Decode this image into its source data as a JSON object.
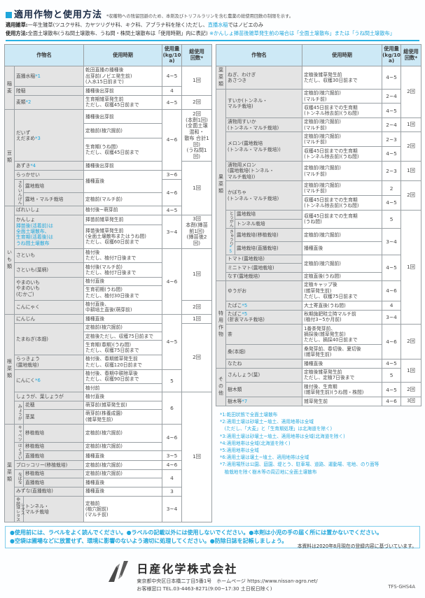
{
  "page": {
    "title": "適用作物と使用方法",
    "title_note": "*収穫物への残留回避のため、本剤及びトリフルラリンを含む農薬の総使用回数の制限を示す。",
    "weeds_label": "適用雑草:",
    "weeds_text": "一年生雑草(ツユクサ科、カヤツリグサ科、キク科、アブラナ科を除く)ただし、",
    "weeds_highlight": "直播水稲",
    "weeds_tail": "ではノビエのみ",
    "method_label": "使用方法:",
    "method_text": "全面土壌散布(うね間土壌散布、うね間・株間土壌散布は「使用時期」内に表記)",
    "method_note": "※かんしょ挿苗後雑草発生前の場合は「全面土壌散布」または「うね間土壌散布」"
  },
  "table": {
    "headers": {
      "crop": "作物名",
      "period": "使用時期",
      "amount": "使用量\n(kg/10a)",
      "count": "総使用\n回数*"
    },
    "left_rows": [
      [
        {
          "t": "稲麦",
          "c": "g",
          "rs": 3
        },
        {
          "t": "直播水稲〚*1〛",
          "c": "nm",
          "cs": 2
        },
        {
          "t": "乾田直播の播種後\n出芽前(ノビエ発生前)\n(入水15日前まで)",
          "c": "pd"
        },
        {
          "t": "4~5",
          "c": "am"
        },
        {
          "t": "1回",
          "c": "ct",
          "rs": 2
        }
      ],
      [
        {
          "t": "陸稲",
          "c": "nm",
          "cs": 2
        },
        {
          "t": "播種後出芽前",
          "c": "pd"
        },
        {
          "t": "4",
          "c": "am"
        }
      ],
      [
        {
          "t": "麦類〚*2〛",
          "c": "nm",
          "cs": 2
        },
        {
          "t": "生育期雑草発生前\nただし、収穫45日前まで",
          "c": "pd"
        },
        {
          "t": "4~5",
          "c": "am"
        },
        {
          "t": "2回",
          "c": "ct"
        }
      ],
      [
        {
          "t": "豆類",
          "c": "g",
          "rs": 7
        },
        {
          "t": "だいず\nえだまめ〚*3〛",
          "c": "nm",
          "cs": 2,
          "rs": 3
        },
        {
          "t": "播種後出芽前",
          "c": "pd"
        },
        {
          "t": "4~6",
          "c": "am",
          "rs": 4
        },
        {
          "t": "2回\n〚〛(本剤1回)\n(全面土壌混和・\n散布 合計1回)\n(うね間1回)",
          "c": "ct",
          "rs": 3
        }
      ],
      [
        {
          "t": "定植前(植穴掘前)",
          "c": "pd"
        }
      ],
      [
        {
          "t": "生育期(うね間)\nただし、収穫45日前まで",
          "c": "pd"
        }
      ],
      [
        {
          "t": "あずき〚*4〛",
          "c": "nm",
          "cs": 2
        },
        {
          "t": "播種後出芽前",
          "c": "pd"
        },
        {
          "t": "1回",
          "c": "ct",
          "rs": 5
        }
      ],
      [
        {
          "t": "らっかせい",
          "c": "nm",
          "cs": 2
        },
        {
          "t": "播種直後",
          "c": "pd",
          "rs": 2
        },
        {
          "t": "3~6",
          "c": "am"
        }
      ],
      [
        {
          "t": "さやいんげん",
          "c": "sv",
          "rs": 2
        },
        {
          "t": "露地栽培",
          "c": "nm"
        },
        {
          "t": "4~6",
          "c": "am",
          "rs": 2
        }
      ],
      [
        {
          "t": "露地・マルチ栽培",
          "c": "nm"
        },
        {
          "t": "定植前(マルチ前)",
          "c": "pd"
        }
      ],
      [
        {
          "t": "いも類",
          "c": "g",
          "rs": 8
        },
        {
          "t": "ばれいしょ",
          "c": "nm",
          "cs": 2
        },
        {
          "t": "植付後~萌芽前",
          "c": "pd"
        },
        {
          "t": "4~5",
          "c": "am"
        }
      ],
      [
        {
          "t": "かんしょ\n〚挿苗後(活着前)は\n全面土壌散布、\n生育期(活着後)は\nうね間土壌散布〛",
          "c": "nm",
          "cs": 2,
          "rs": 2
        },
        {
          "t": "挿苗前雑草発生前",
          "c": "pd"
        },
        {
          "t": "3~4",
          "c": "am",
          "rs": 2
        },
        {
          "t": "3回\n〚〛本剤(挿苗前1回)\n(挿苗後2回)",
          "c": "ct",
          "rs": 2
        }
      ],
      [
        {
          "t": "挿苗後雑草発生前\n(全面土壌散布またはうね間)\nただし、収穫60日前まで",
          "c": "pd"
        }
      ],
      [
        {
          "t": "さといも",
          "c": "nm",
          "cs": 2
        },
        {
          "t": "植付後\nただし、植付7日後まで",
          "c": "pd"
        },
        {
          "t": "4~6",
          "c": "am",
          "rs": 5
        },
        {
          "t": "1回",
          "c": "ct",
          "rs": 4
        }
      ],
      [
        {
          "t": "さといも(葉柄)",
          "c": "nm",
          "cs": 2
        },
        {
          "t": "植付後(マルチ前)\nただし、植付7日後まで",
          "c": "pd"
        }
      ],
      [
        {
          "t": "やまのいも\nやまのいも\n(むかご)",
          "c": "nm",
          "cs": 2,
          "rs": 2
        },
        {
          "t": "植付直後",
          "c": "pd"
        }
      ],
      [
        {
          "t": "生育初期(うね間)\nただし、植付30日後まで",
          "c": "pd"
        }
      ],
      [
        {
          "t": "こんにゃく",
          "c": "nm",
          "cs": 2
        },
        {
          "t": "植付直後、\n中耕培土直後(萌芽前)",
          "c": "pd"
        },
        {
          "t": "2回",
          "c": "ct"
        }
      ],
      [
        {
          "t": "根菜類",
          "c": "g",
          "rs": 10
        },
        {
          "t": "にんじん",
          "c": "nm",
          "cs": 2
        },
        {
          "t": "播種直後",
          "c": "pd"
        },
        {
          "t": "4~5",
          "c": "am",
          "rs": 5
        },
        {
          "t": "1回",
          "c": "ct"
        }
      ],
      [
        {
          "t": "たまねぎ(本畑)",
          "c": "nm",
          "cs": 2,
          "rs": 3
        },
        {
          "t": "定植前(植穴掘前)",
          "c": "pd"
        },
        {
          "t": "2回",
          "c": "ct",
          "rs": 6
        }
      ],
      [
        {
          "t": "定植後ただし、収穫75日前まで",
          "c": "pd"
        }
      ],
      [
        {
          "t": "生育期(春期)(うね間)\nただし、収穫75日前まで",
          "c": "pd"
        }
      ],
      [
        {
          "t": "らっきょう\n(露地栽培)",
          "c": "nm",
          "cs": 2
        },
        {
          "t": "植付後、春期雑草発生前\nただし、収穫120日前まで",
          "c": "pd"
        }
      ],
      [
        {
          "t": "にんにく〚*6〛",
          "c": "nm",
          "cs": 2,
          "rs": 2
        },
        {
          "t": "植付後、春期中耕除草後\nただし、収穫90日前まで",
          "c": "pd"
        },
        {
          "t": "5",
          "c": "am",
          "rs": 2
        }
      ],
      [
        {
          "t": "植付前",
          "c": "pd"
        }
      ],
      [
        {
          "t": "しょうが、葉しょうが",
          "c": "nm",
          "cs": 2
        },
        {
          "t": "植付直後",
          "c": "pd"
        },
        {
          "t": "6",
          "c": "am",
          "rs": 3
        },
        {
          "t": "1回",
          "c": "ct",
          "rs": 11
        }
      ],
      [
        {
          "t": "みょうが",
          "c": "sv",
          "rs": 2
        },
        {
          "t": "花穂",
          "c": "nm"
        },
        {
          "t": "萌芽前(雑草発生前)",
          "c": "pd"
        }
      ],
      [
        {
          "t": "茎葉",
          "c": "nm"
        },
        {
          "t": "萌芽前(株養成園)\n(雑草発生前)",
          "c": "pd"
        }
      ],
      [
        {
          "t": "葉菜類",
          "c": "g",
          "rs": 8
        },
        {
          "t": "キャベツ",
          "c": "sv"
        },
        {
          "t": "移植栽培",
          "c": "nm"
        },
        {
          "t": "定植前(植穴掘前)",
          "c": "pd"
        },
        {
          "t": "4~6",
          "c": "am",
          "rs": 2
        }
      ],
      [
        {
          "t": "はくさい",
          "c": "sv",
          "rs": 2
        },
        {
          "t": "移植栽培",
          "c": "nm"
        },
        {
          "t": "定植前(植穴掘前)",
          "c": "pd"
        }
      ],
      [
        {
          "t": "直播栽培",
          "c": "nm"
        },
        {
          "t": "播種直後",
          "c": "pd"
        },
        {
          "t": "3~5",
          "c": "am"
        }
      ],
      [
        {
          "t": "ブロッコリー(移植栽培)",
          "c": "nm",
          "cs": 2
        },
        {
          "t": "定植前(植穴掘前)",
          "c": "pd"
        },
        {
          "t": "4~6",
          "c": "am"
        }
      ],
      [
        {
          "t": "なばな",
          "c": "sv",
          "rs": 2
        },
        {
          "t": "移植栽培",
          "c": "nm"
        },
        {
          "t": "定植前(植穴掘前)",
          "c": "pd"
        },
        {
          "t": "4",
          "c": "am",
          "rs": 2
        }
      ],
      [
        {
          "t": "直播栽培",
          "c": "nm"
        },
        {
          "t": "播種直後",
          "c": "pd"
        }
      ],
      [
        {
          "t": "みずな(直播栽培)",
          "c": "nm",
          "cs": 2
        },
        {
          "t": "播種直後",
          "c": "pd"
        },
        {
          "t": "3",
          "c": "am"
        }
      ],
      [
        {
          "t": "レタス\n非結球レタス",
          "c": "sv"
        },
        {
          "t": "トンネル・\nマルチ栽培",
          "c": "nm"
        },
        {
          "t": "定植前\n(植穴掘前)\n(マルチ前)",
          "c": "pd"
        },
        {
          "t": "3~4",
          "c": "am"
        }
      ]
    ],
    "right_rows": [
      [
        {
          "t": "葉菜類",
          "c": "g"
        },
        {
          "t": "ねぎ、わけぎ\nあさつき",
          "c": "nm",
          "cs": 2
        },
        {
          "t": "定植後雑草発生前\nただし、収穫30日前まで",
          "c": "pd"
        },
        {
          "t": "4~5",
          "c": "am"
        },
        {
          "t": "2回",
          "c": "ct",
          "rs": 3
        }
      ],
      [
        {
          "t": "果菜類",
          "c": "g",
          "rs": 16
        },
        {
          "t": "すいか(トンネル・\nマルチ栽培)",
          "c": "nm",
          "cs": 2,
          "rs": 2
        },
        {
          "t": "定植前(植穴掘前)\n(マルチ前)",
          "c": "pd"
        },
        {
          "t": "2~4",
          "c": "am"
        }
      ],
      [
        {
          "t": "収穫45日前までの生育期\n(トンネル除去前)(うね間)",
          "c": "pd"
        },
        {
          "t": "4~5",
          "c": "am"
        }
      ],
      [
        {
          "t": "漬物用すいか\n(トンネル・マルチ栽培)",
          "c": "nm",
          "cs": 2
        },
        {
          "t": "定植前(植穴掘前)\n(マルチ前)",
          "c": "pd"
        },
        {
          "t": "2~4",
          "c": "am"
        },
        {
          "t": "1回",
          "c": "ct"
        }
      ],
      [
        {
          "t": "メロン(露地栽培\n(トンネル・マルチ栽培))",
          "c": "nm",
          "cs": 2,
          "rs": 2
        },
        {
          "t": "定植前(植穴掘前)\n(マルチ前)",
          "c": "pd"
        },
        {
          "t": "2~3",
          "c": "am"
        },
        {
          "t": "2回",
          "c": "ct",
          "rs": 2
        }
      ],
      [
        {
          "t": "収穫45日前までの生育期\n(トンネル除去前)(うね間)",
          "c": "pd"
        },
        {
          "t": "4~5",
          "c": "am"
        }
      ],
      [
        {
          "t": "漬物用メロン\n(露地栽培(トンネル・\nマルチ栽培))",
          "c": "nm",
          "cs": 2
        },
        {
          "t": "定植前(植穴掘前)\n(マルチ前)",
          "c": "pd"
        },
        {
          "t": "2~3",
          "c": "am"
        },
        {
          "t": "1回",
          "c": "ct"
        }
      ],
      [
        {
          "t": "かぼちゃ\n(トンネル・マルチ栽培)",
          "c": "nm",
          "cs": 2,
          "rs": 2
        },
        {
          "t": "定植前(植穴掘前)\n(マルチ前)",
          "c": "pd"
        },
        {
          "t": "2",
          "c": "am"
        },
        {
          "t": "2回",
          "c": "ct",
          "rs": 2
        }
      ],
      [
        {
          "t": "収穫45日前までの生育期\n(トンネル除去前)(うね間)",
          "c": "pd"
        },
        {
          "t": "4~5",
          "c": "am"
        }
      ],
      [
        {
          "t": "とうがん",
          "c": "sv",
          "rs": 2
        },
        {
          "t": "露地栽培",
          "c": "nm"
        },
        {
          "t": "収穫45日前までの生育期\n(うね間)",
          "c": "pd",
          "rs": 2
        },
        {
          "t": "5",
          "c": "am",
          "rs": 2
        },
        {
          "t": "1回",
          "c": "ct",
          "rs": 11
        }
      ],
      [
        {
          "t": "トンネル栽培",
          "c": "nm"
        }
      ],
      [
        {
          "t": "きゅうり〚*5〛",
          "c": "sv",
          "rs": 2
        },
        {
          "t": "露地栽培(移植栽培)",
          "c": "nm"
        },
        {
          "t": "定植前(植穴掘前)",
          "c": "pd"
        },
        {
          "t": "3~4",
          "c": "am",
          "rs": 2
        }
      ],
      [
        {
          "t": "露地栽培(直播栽培)",
          "c": "nm"
        },
        {
          "t": "播種直後",
          "c": "pd"
        }
      ],
      [
        {
          "t": "トマト(露地栽培)",
          "c": "nm",
          "cs": 2
        },
        {
          "t": "定植前(植穴掘前)",
          "c": "pd",
          "rs": 3
        },
        {
          "t": "4~5",
          "c": "am",
          "rs": 4
        }
      ],
      [
        {
          "t": "ミニトマト(露地栽培)",
          "c": "nm",
          "cs": 2
        }
      ],
      [
        {
          "t": "なす(露地栽培)",
          "c": "nm",
          "cs": 2,
          "rs": 2
        }
      ],
      [
        {
          "t": "定植直後(うね間)",
          "c": "pd"
        }
      ],
      [
        {
          "t": "特用作物",
          "c": "g",
          "rs": 6
        },
        {
          "t": "ゆうがお",
          "c": "nm",
          "cs": 2
        },
        {
          "t": "定植キャップ後\n(雑草発生前)\nただし、収穫75日前まで",
          "c": "pd"
        },
        {
          "t": "4~6",
          "c": "am"
        }
      ],
      [
        {
          "t": "たばこ〚*5〛",
          "c": "nm",
          "cs": 2
        },
        {
          "t": "大土寄直後(うね間)",
          "c": "pd"
        },
        {
          "t": "4",
          "c": "am"
        }
      ],
      [
        {
          "t": "たばこ〚*5〛\n(折衷マルチ栽培)",
          "c": "nm",
          "cs": 2
        },
        {
          "t": "秋期施肥畦立時マルチ前\n(植付3~5か月前)",
          "c": "pd"
        },
        {
          "t": "3~4",
          "c": "am"
        }
      ],
      [
        {
          "t": "茶",
          "c": "nm",
          "cs": 2
        },
        {
          "t": "1番茶発芽前、\n摘採後(雑草発生前)\nただし、摘採40日前まで",
          "c": "pd"
        },
        {
          "t": "4~6",
          "c": "am",
          "rs": 2
        },
        {
          "t": "2回",
          "c": "ct",
          "rs": 2
        }
      ],
      [
        {
          "t": "桑(本畑)",
          "c": "nm",
          "cs": 2
        },
        {
          "t": "桑発芽前、春切後、夏切後\n(雑草発生前)",
          "c": "pd"
        }
      ],
      [
        {
          "t": "なたね",
          "c": "nm",
          "cs": 2
        },
        {
          "t": "播種直後",
          "c": "pd"
        },
        {
          "t": "4~5",
          "c": "am"
        },
        {
          "t": "1回",
          "c": "ct",
          "rs": 2
        }
      ],
      [
        {
          "t": "その他",
          "c": "g",
          "rs": 3
        },
        {
          "t": "さんしょう(葉)",
          "c": "nm",
          "cs": 2
        },
        {
          "t": "定植後雑草発生前\nただし、定植7日後まで",
          "c": "pd"
        },
        {
          "t": "5",
          "c": "am"
        }
      ],
      [
        {
          "t": "樹木類",
          "c": "nm",
          "cs": 2
        },
        {
          "t": "植付後、生育期\n(雑草発生前)(うね間・株間)",
          "c": "pd"
        },
        {
          "t": "4~5",
          "c": "am"
        },
        {
          "t": "2回",
          "c": "ct"
        }
      ],
      [
        {
          "t": "樹木等〚*7〛",
          "c": "nm",
          "cs": 2
        },
        {
          "t": "雑草発生前",
          "c": "pd"
        },
        {
          "t": "4~6",
          "c": "am"
        },
        {
          "t": "3回",
          "c": "ct"
        }
      ]
    ]
  },
  "footnotes": [
    "*1:乾田状態で全面土壌散布",
    "*2:適用土壌は砂壌土~埴土、適用地帯は全域",
    "　(ただし、「大麦」と「生育期処理」は北海道を除く)",
    "*3:適用土壌は砂壌土~埴土、適用地帯は全域(北海道を除く)",
    "*4:適用地帯は全域(北海道を除く)",
    "*5:適用地帯は全域",
    "*6:適用土壌は壌土~埴土、適用地帯は全域",
    "*7:適用場所は公園、庭園、堤とう、駐車場、道路、運動場、宅地、のり面等",
    "　植栽地を除く樹木等の周辺地に全面土壌散布"
  ],
  "notice": {
    "line1": "●使用前には、ラベルをよく読んでください。●ラベルの記載以外には使用しないでください。●本剤は小児の手の届く所には置かないでください。",
    "line2": "●空袋は圃場などに放置せず、環境に影響のないよう適切に処理してください。●防除日誌を記帳しましょう。"
  },
  "disclaimer": "本資料は2020年8月現在の登録内容に基づいています。",
  "footer": {
    "company": "日産化学株式会社",
    "address": "東京都中央区日本橋二丁目5番1号　ホームページ https://www.nissan-agro.net/",
    "contact": "お客様窓口 TEL.03-4463-8271(9:00~17:30 土日祝日除く)",
    "code": "TFS-GHS4A"
  },
  "colors": {
    "accent": "#1fa6db",
    "header_bg": "#cde9f6",
    "cell_bg": "#e4e4e4"
  }
}
